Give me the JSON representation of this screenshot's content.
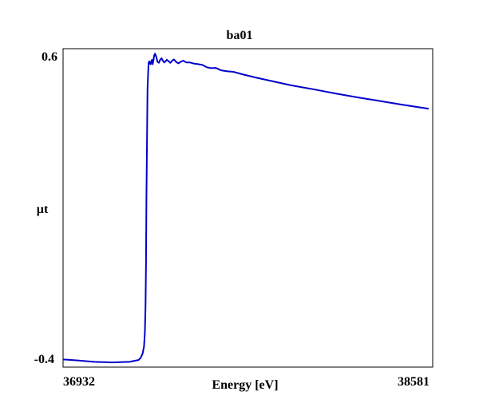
{
  "chart_data": {
    "type": "line",
    "title": "ba01",
    "xlabel": "Energy [eV]",
    "ylabel": "µt",
    "xlim": [
      36932,
      38581
    ],
    "ylim": [
      -0.4,
      0.6
    ],
    "x_tick_labels": [
      "36932",
      "38581"
    ],
    "y_tick_labels": [
      "0.6",
      "-0.4"
    ],
    "grid": false,
    "legend": "none",
    "line_color": "#0000cc",
    "series": [
      {
        "x": [
          36932,
          36992,
          37072,
          37152,
          37232,
          37272,
          37282,
          37291,
          37297,
          37301,
          37304,
          37306,
          37308,
          37311,
          37313,
          37316,
          37318,
          37321,
          37324,
          37327,
          37330,
          37333,
          37336,
          37339,
          37343,
          37347,
          37352,
          37358,
          37364,
          37370,
          37376,
          37382,
          37388,
          37394,
          37400,
          37408,
          37416,
          37424,
          37432,
          37442,
          37452,
          37462,
          37474,
          37488,
          37504,
          37524,
          37544,
          37560,
          37580,
          37600,
          37620,
          37645,
          37670,
          37700,
          37740,
          37800,
          37880,
          37960,
          38060,
          38160,
          38260,
          38360,
          38460,
          38581
        ],
        "y": [
          -0.401,
          -0.404,
          -0.409,
          -0.411,
          -0.409,
          -0.403,
          -0.396,
          -0.381,
          -0.358,
          -0.31,
          -0.22,
          -0.08,
          0.13,
          0.37,
          0.5,
          0.56,
          0.585,
          0.59,
          0.582,
          0.58,
          0.59,
          0.595,
          0.58,
          0.59,
          0.61,
          0.615,
          0.605,
          0.588,
          0.585,
          0.595,
          0.6,
          0.592,
          0.586,
          0.59,
          0.595,
          0.59,
          0.585,
          0.592,
          0.596,
          0.588,
          0.583,
          0.588,
          0.592,
          0.586,
          0.586,
          0.582,
          0.58,
          0.578,
          0.57,
          0.567,
          0.568,
          0.56,
          0.557,
          0.555,
          0.547,
          0.536,
          0.523,
          0.51,
          0.497,
          0.483,
          0.47,
          0.458,
          0.446,
          0.432
        ]
      }
    ]
  }
}
